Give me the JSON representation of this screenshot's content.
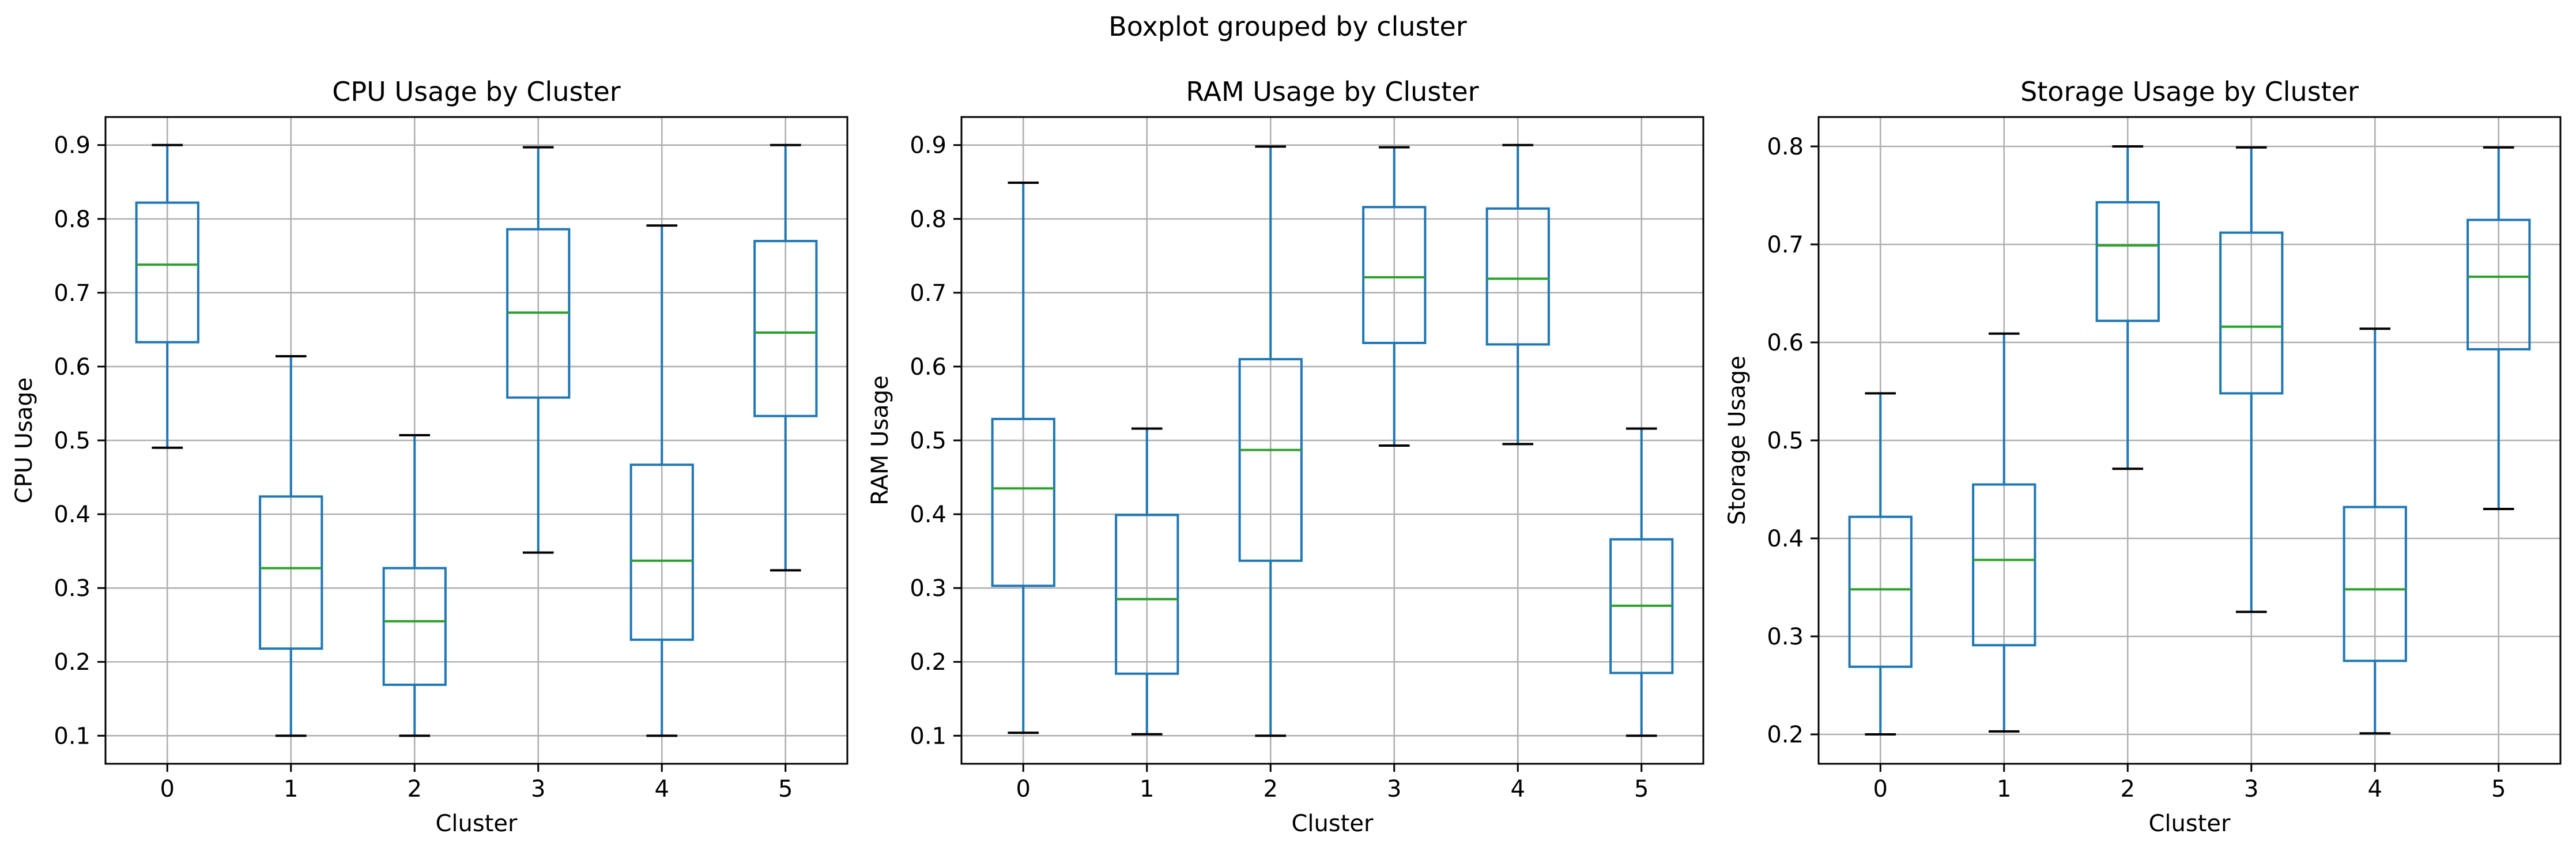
{
  "figure": {
    "suptitle": "Boxplot grouped by cluster"
  },
  "colors": {
    "box": "#1f77b4",
    "median": "#2ca02c",
    "cap": "#000000",
    "grid": "#b0b0b0",
    "axes": "#000000"
  },
  "chart_data": [
    {
      "type": "boxplot",
      "title": "CPU Usage by Cluster",
      "xlabel": "Cluster",
      "ylabel": "CPU Usage",
      "categories": [
        "0",
        "1",
        "2",
        "3",
        "4",
        "5"
      ],
      "ylim": [
        0.062,
        0.938
      ],
      "yticks": [
        0.1,
        0.2,
        0.3,
        0.4,
        0.5,
        0.6,
        0.7,
        0.8,
        0.9
      ],
      "grid": true,
      "boxes": [
        {
          "whislo": 0.49,
          "q1": 0.633,
          "med": 0.738,
          "q3": 0.822,
          "whishi": 0.9
        },
        {
          "whislo": 0.1,
          "q1": 0.218,
          "med": 0.327,
          "q3": 0.424,
          "whishi": 0.614
        },
        {
          "whislo": 0.1,
          "q1": 0.169,
          "med": 0.255,
          "q3": 0.327,
          "whishi": 0.507
        },
        {
          "whislo": 0.348,
          "q1": 0.558,
          "med": 0.673,
          "q3": 0.786,
          "whishi": 0.897
        },
        {
          "whislo": 0.1,
          "q1": 0.23,
          "med": 0.337,
          "q3": 0.467,
          "whishi": 0.791
        },
        {
          "whislo": 0.324,
          "q1": 0.533,
          "med": 0.646,
          "q3": 0.77,
          "whishi": 0.9
        }
      ]
    },
    {
      "type": "boxplot",
      "title": "RAM Usage by Cluster",
      "xlabel": "Cluster",
      "ylabel": "RAM Usage",
      "categories": [
        "0",
        "1",
        "2",
        "3",
        "4",
        "5"
      ],
      "ylim": [
        0.062,
        0.938
      ],
      "yticks": [
        0.1,
        0.2,
        0.3,
        0.4,
        0.5,
        0.6,
        0.7,
        0.8,
        0.9
      ],
      "grid": true,
      "boxes": [
        {
          "whislo": 0.104,
          "q1": 0.303,
          "med": 0.435,
          "q3": 0.529,
          "whishi": 0.849
        },
        {
          "whislo": 0.102,
          "q1": 0.184,
          "med": 0.285,
          "q3": 0.399,
          "whishi": 0.516
        },
        {
          "whislo": 0.1,
          "q1": 0.337,
          "med": 0.487,
          "q3": 0.61,
          "whishi": 0.898
        },
        {
          "whislo": 0.493,
          "q1": 0.632,
          "med": 0.721,
          "q3": 0.816,
          "whishi": 0.897
        },
        {
          "whislo": 0.495,
          "q1": 0.63,
          "med": 0.719,
          "q3": 0.814,
          "whishi": 0.9
        },
        {
          "whislo": 0.1,
          "q1": 0.185,
          "med": 0.276,
          "q3": 0.366,
          "whishi": 0.516
        }
      ]
    },
    {
      "type": "boxplot",
      "title": "Storage Usage by Cluster",
      "xlabel": "Cluster",
      "ylabel": "Storage Usage",
      "categories": [
        "0",
        "1",
        "2",
        "3",
        "4",
        "5"
      ],
      "ylim": [
        0.17,
        0.83
      ],
      "yticks": [
        0.2,
        0.3,
        0.4,
        0.5,
        0.6,
        0.7,
        0.8
      ],
      "grid": true,
      "boxes": [
        {
          "whislo": 0.2,
          "q1": 0.269,
          "med": 0.348,
          "q3": 0.422,
          "whishi": 0.548
        },
        {
          "whislo": 0.203,
          "q1": 0.291,
          "med": 0.378,
          "q3": 0.455,
          "whishi": 0.609
        },
        {
          "whislo": 0.471,
          "q1": 0.622,
          "med": 0.699,
          "q3": 0.743,
          "whishi": 0.8
        },
        {
          "whislo": 0.325,
          "q1": 0.548,
          "med": 0.616,
          "q3": 0.712,
          "whishi": 0.799
        },
        {
          "whislo": 0.201,
          "q1": 0.275,
          "med": 0.348,
          "q3": 0.432,
          "whishi": 0.614
        },
        {
          "whislo": 0.43,
          "q1": 0.593,
          "med": 0.667,
          "q3": 0.725,
          "whishi": 0.799
        }
      ]
    }
  ]
}
